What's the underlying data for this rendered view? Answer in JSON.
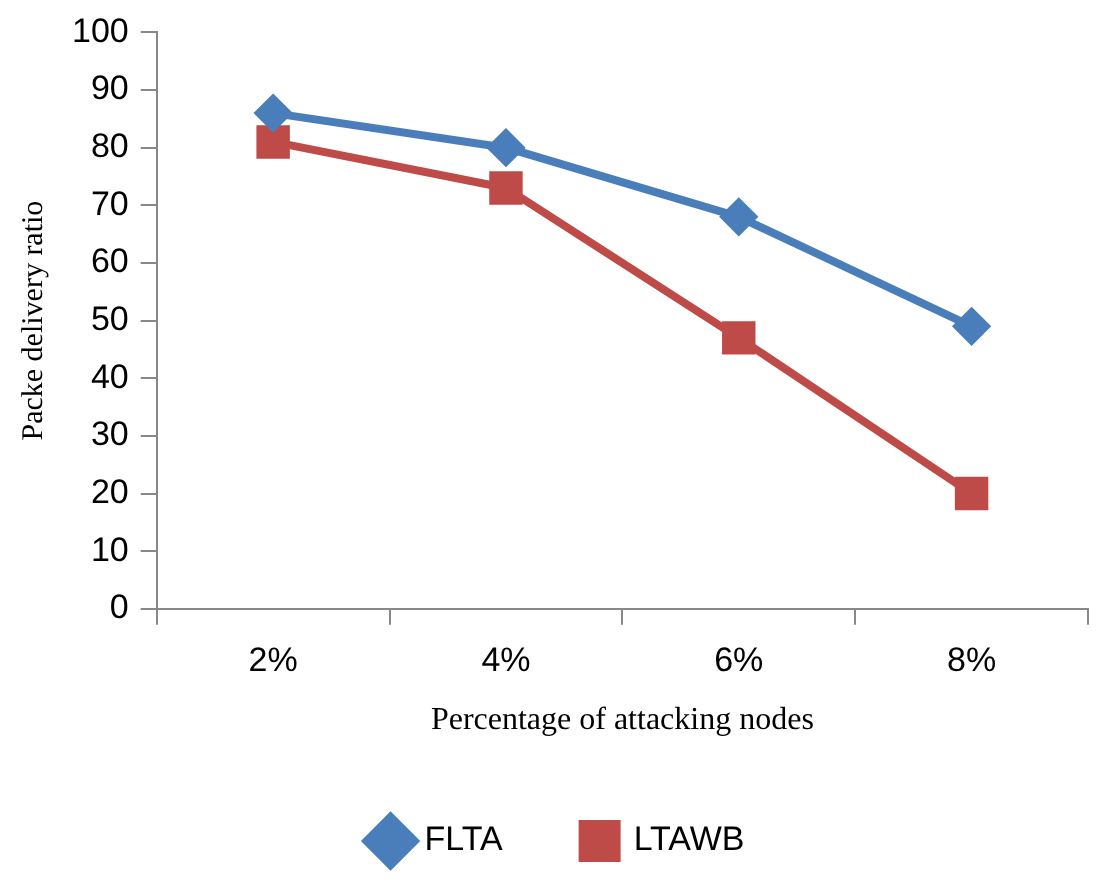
{
  "chart_data": {
    "type": "line",
    "xlabel": "Percentage of attacking nodes",
    "ylabel": "Packe delivery ratio",
    "categories": [
      "2%",
      "4%",
      "6%",
      "8%"
    ],
    "series": [
      {
        "name": "FLTA",
        "color": "#4a7ebb",
        "marker": "diamond",
        "values": [
          86,
          80,
          68,
          49
        ]
      },
      {
        "name": "LTAWB",
        "color": "#be4b48",
        "marker": "square",
        "values": [
          81,
          73,
          47,
          20
        ]
      }
    ],
    "ylim": [
      0,
      100
    ],
    "yticks": [
      0,
      10,
      20,
      30,
      40,
      50,
      60,
      70,
      80,
      90,
      100
    ],
    "grid": false,
    "legend": "bottom",
    "line_style": "solid"
  }
}
